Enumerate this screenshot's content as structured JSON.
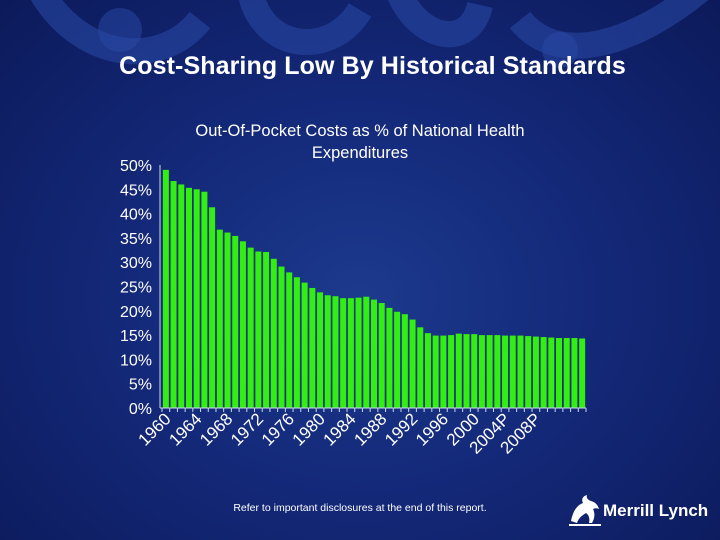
{
  "slide": {
    "title": "Cost-Sharing Low By Historical Standards",
    "footnote": "Refer to important disclosures at the end of this report.",
    "logo_text": "Merrill Lynch",
    "logo_icon": "bull-icon"
  },
  "colors": {
    "background": "#14297a",
    "bar": "#33ee11",
    "text": "#ffffff"
  },
  "chart_data": {
    "type": "bar",
    "title": "Out-Of-Pocket Costs as % of National Health Expenditures",
    "xlabel": "",
    "ylabel": "",
    "ylim": [
      0,
      50
    ],
    "y_ticks": [
      "0%",
      "5%",
      "10%",
      "15%",
      "20%",
      "25%",
      "30%",
      "35%",
      "40%",
      "45%",
      "50%"
    ],
    "x_tick_labels": [
      "1960",
      "1964",
      "1968",
      "1972",
      "1976",
      "1980",
      "1984",
      "1988",
      "1992",
      "1996",
      "2000",
      "2004P",
      "2008P"
    ],
    "categories": [
      "1960",
      "1961",
      "1962",
      "1963",
      "1964",
      "1965",
      "1966",
      "1967",
      "1968",
      "1969",
      "1970",
      "1971",
      "1972",
      "1973",
      "1974",
      "1975",
      "1976",
      "1977",
      "1978",
      "1979",
      "1980",
      "1981",
      "1982",
      "1983",
      "1984",
      "1985",
      "1986",
      "1987",
      "1988",
      "1989",
      "1990",
      "1991",
      "1992",
      "1993",
      "1994",
      "1995",
      "1996",
      "1997",
      "1998",
      "1999",
      "2000",
      "2001",
      "2002",
      "2003",
      "2004P",
      "2005P",
      "2006P",
      "2007P",
      "2008P",
      "2009P",
      "2010P",
      "2011P",
      "2012P",
      "2013P",
      "2014P"
    ],
    "values": [
      49.0,
      46.7,
      46.0,
      45.3,
      45.0,
      44.5,
      41.3,
      36.7,
      36.1,
      35.4,
      34.3,
      33.0,
      32.2,
      32.1,
      30.7,
      29.1,
      27.9,
      26.9,
      25.8,
      24.7,
      23.8,
      23.2,
      23.0,
      22.6,
      22.6,
      22.7,
      22.9,
      22.3,
      21.6,
      20.6,
      19.8,
      19.3,
      18.2,
      16.6,
      15.4,
      14.9,
      14.9,
      15.0,
      15.3,
      15.2,
      15.2,
      15.0,
      15.0,
      15.0,
      14.9,
      14.9,
      14.9,
      14.8,
      14.7,
      14.6,
      14.5,
      14.4,
      14.4,
      14.4,
      14.3
    ]
  }
}
